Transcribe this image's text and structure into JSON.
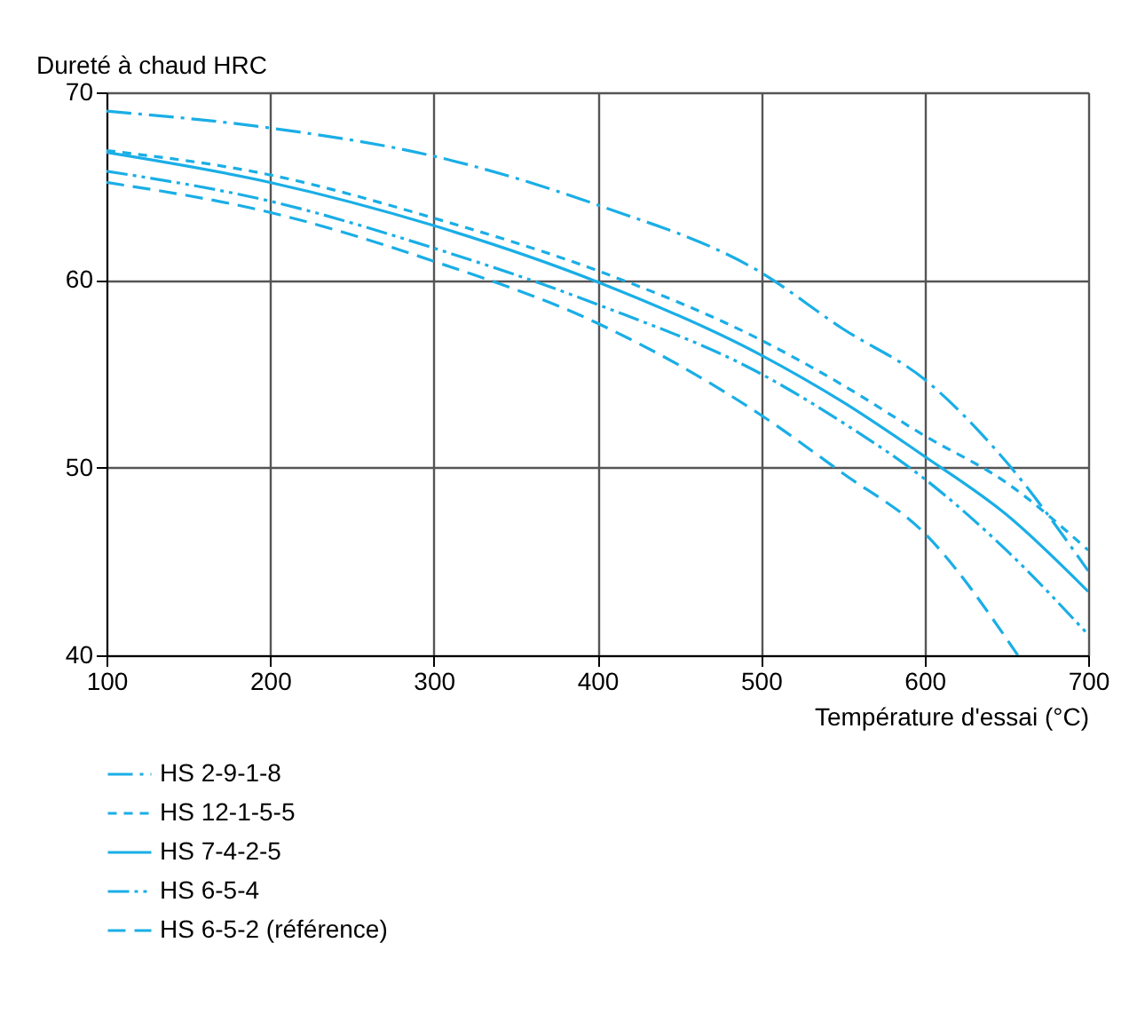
{
  "chart_data": {
    "type": "line",
    "ylabel": "Dureté à chaud HRC",
    "xlabel": "Température d'essai (°C)",
    "xlim": [
      100,
      700
    ],
    "xticks": [
      100,
      200,
      300,
      400,
      500,
      600,
      700
    ],
    "ylim": [
      40,
      70
    ],
    "yticks": [
      40,
      50,
      60,
      70
    ],
    "grid": true,
    "legend": "bottom",
    "marker": "none",
    "series": [
      {
        "name": "HS 2-9-1-8",
        "color": "#1aaee6",
        "line_style": "dashdot",
        "x": [
          100,
          200,
          300,
          400,
          500,
          550,
          600,
          650,
          700
        ],
        "values": [
          69.0,
          68.1,
          66.6,
          64.0,
          60.4,
          57.4,
          54.7,
          50.3,
          44.5
        ]
      },
      {
        "name": "HS 12-1-5-5",
        "color": "#1aaee6",
        "line_style": "dashed",
        "x": [
          100,
          200,
          300,
          400,
          500,
          550,
          600,
          650,
          700
        ],
        "values": [
          66.9,
          65.6,
          63.3,
          60.5,
          56.8,
          54.4,
          51.7,
          49.2,
          45.6
        ]
      },
      {
        "name": "HS 7-4-2-5",
        "color": "#1aaee6",
        "line_style": "solid",
        "x": [
          100,
          200,
          300,
          400,
          500,
          550,
          600,
          650,
          700
        ],
        "values": [
          66.8,
          65.2,
          62.9,
          59.9,
          56.0,
          53.5,
          50.6,
          47.5,
          43.4
        ]
      },
      {
        "name": "HS 6-5-4",
        "color": "#1aaee6",
        "line_style": "dashdotdot",
        "x": [
          100,
          200,
          300,
          400,
          500,
          550,
          600,
          650,
          700
        ],
        "values": [
          65.8,
          64.2,
          61.7,
          58.7,
          55.0,
          52.4,
          49.4,
          45.6,
          41.1
        ]
      },
      {
        "name": "HS 6-5-2 (référence)",
        "color": "#1aaee6",
        "line_style": "longdash",
        "x": [
          100,
          200,
          300,
          400,
          500,
          550,
          600,
          657
        ],
        "values": [
          65.2,
          63.6,
          61.0,
          57.7,
          52.8,
          49.7,
          46.5,
          40.0
        ]
      }
    ]
  }
}
